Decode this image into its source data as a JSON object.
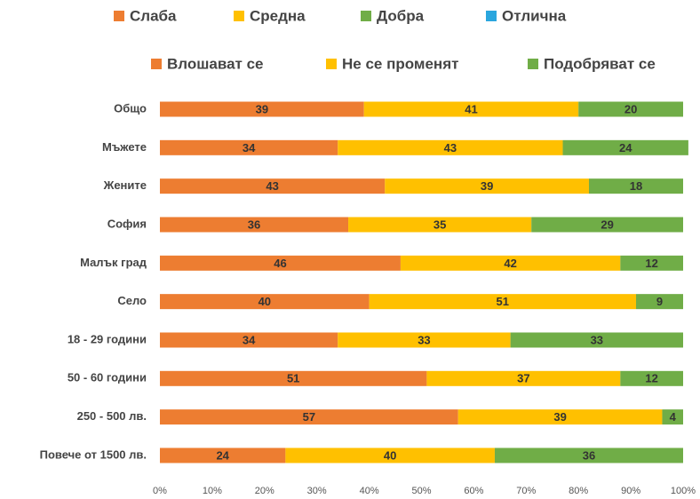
{
  "chart_data": {
    "type": "stacked_barh",
    "legend_extra": [
      {
        "name": "Слаба",
        "color": "#ed7d31"
      },
      {
        "name": "Средна",
        "color": "#ffc000"
      },
      {
        "name": "Добра",
        "color": "#70ad47"
      },
      {
        "name": "Отлична",
        "color": "#2aa6de"
      }
    ],
    "categories": [
      "Общо",
      "Мъжете",
      "Жените",
      "София",
      "Малък град",
      "Село",
      "18 - 29 години",
      "50 - 60 години",
      "250 - 500 лв.",
      "Повече от 1500 лв."
    ],
    "series": [
      {
        "name": "Влошават се",
        "color": "#ed7d31",
        "values": [
          39,
          34,
          43,
          36,
          46,
          40,
          34,
          51,
          57,
          24
        ]
      },
      {
        "name": "Не се променят",
        "color": "#ffc000",
        "values": [
          41,
          43,
          39,
          35,
          42,
          51,
          33,
          37,
          39,
          40
        ]
      },
      {
        "name": "Подобряват се",
        "color": "#70ad47",
        "values": [
          20,
          24,
          18,
          29,
          12,
          9,
          33,
          12,
          4,
          36
        ]
      }
    ],
    "xlim": [
      0,
      100
    ],
    "xticks": [
      {
        "value": 0,
        "label": "0%"
      },
      {
        "value": 10,
        "label": "10%"
      },
      {
        "value": 20,
        "label": "20%"
      },
      {
        "value": 30,
        "label": "30%"
      },
      {
        "value": 40,
        "label": "40%"
      },
      {
        "value": 50,
        "label": "50%"
      },
      {
        "value": 60,
        "label": "60%"
      },
      {
        "value": 70,
        "label": "70%"
      },
      {
        "value": 80,
        "label": "80%"
      },
      {
        "value": 90,
        "label": "90%"
      },
      {
        "value": 100,
        "label": "100%"
      }
    ]
  }
}
